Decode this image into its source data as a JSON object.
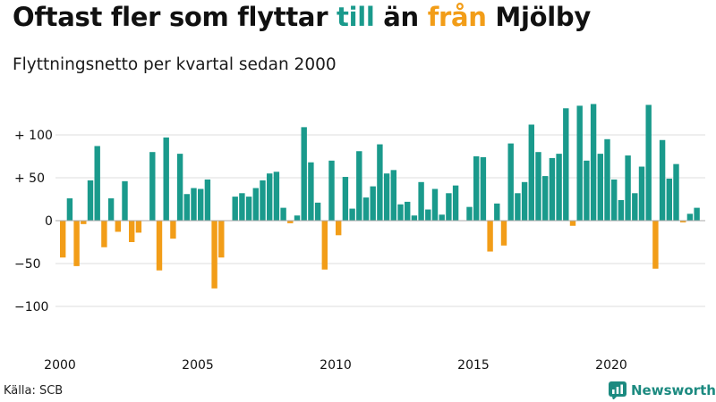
{
  "header": {
    "title_parts": [
      "Oftast fler som flyttar ",
      "till",
      " än ",
      "från",
      " Mjölby"
    ],
    "subtitle": "Flyttningsnetto per kvartal sedan 2000"
  },
  "footer": {
    "source": "Källa: SCB",
    "brand": "Newsworthy"
  },
  "colors": {
    "positive": "#1a9a8c",
    "negative": "#f29d18",
    "grid": "#dddddd",
    "zero_line": "#aaaaaa",
    "text": "#111111"
  },
  "chart_data": {
    "type": "bar",
    "title": "Oftast fler som flyttar till än från Mjölby",
    "subtitle": "Flyttningsnetto per kvartal sedan 2000",
    "ylim": [
      -140,
      140
    ],
    "yticks": [
      {
        "value": 100,
        "label": "+ 100"
      },
      {
        "value": 50,
        "label": "+  50"
      },
      {
        "value": 0,
        "label": "0"
      },
      {
        "value": -50,
        "label": "−50"
      },
      {
        "value": -100,
        "label": "−100"
      }
    ],
    "xticks": [
      "2000",
      "2005",
      "2010",
      "2015",
      "2020"
    ],
    "grid": true,
    "start": "2000 Q1",
    "series": [
      {
        "values": [
          -43,
          26,
          -53,
          -4,
          47,
          87,
          -31,
          26,
          -13,
          46,
          -25,
          -14,
          0,
          80,
          -58,
          97,
          -21,
          78,
          31,
          38,
          37,
          48,
          -79,
          -43,
          0,
          28,
          32,
          28,
          38,
          47,
          55,
          57,
          15,
          -3,
          6,
          109,
          68,
          21,
          -57,
          70,
          -17,
          51,
          14,
          81,
          27,
          40,
          89,
          55,
          59,
          19,
          22,
          6,
          45,
          13,
          37,
          7,
          32,
          41,
          0,
          16,
          75,
          74,
          -36,
          20,
          -29,
          90,
          32,
          45,
          112,
          80,
          52,
          73,
          78,
          131,
          -6,
          134,
          70,
          136,
          78,
          95,
          48,
          24,
          76,
          32,
          63,
          135,
          -56,
          94,
          49,
          66,
          -2,
          8,
          15
        ]
      }
    ]
  }
}
